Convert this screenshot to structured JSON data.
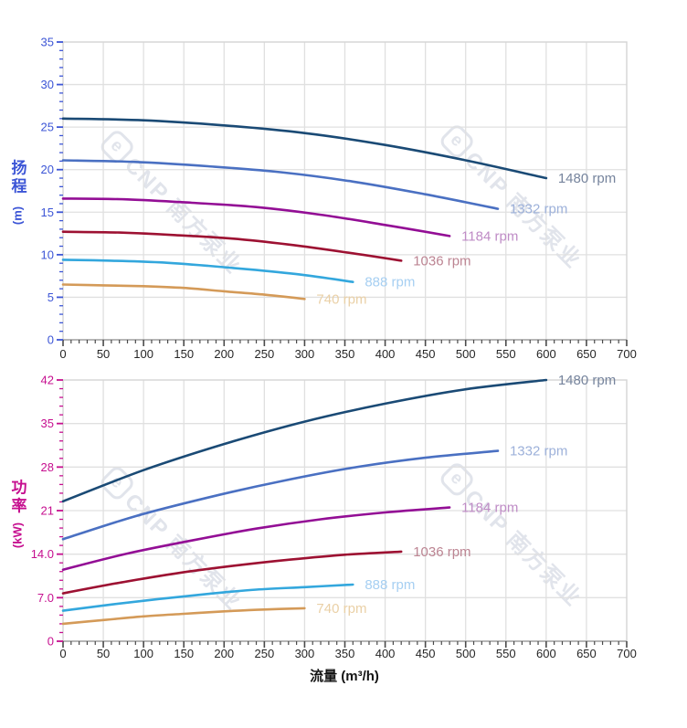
{
  "watermark": {
    "logo_text": "e",
    "text": "CNP 南方泵业"
  },
  "chart_data": [
    {
      "type": "line",
      "title": "",
      "xlabel": "",
      "ylabel": "扬程 (m)",
      "ylabel_cjk": "扬程",
      "ylabel_unit": "(m)",
      "xlim": [
        0,
        700
      ],
      "ylim": [
        0,
        35
      ],
      "x_major_tick": 50,
      "x_minor_tick": 10,
      "y_minor_tick": 1,
      "grid": true,
      "axis_color": "#3c55d6",
      "x_tick_labels": [
        "0",
        "50",
        "100",
        "150",
        "200",
        "250",
        "300",
        "350",
        "400",
        "450",
        "500",
        "550",
        "600",
        "650",
        "700"
      ],
      "y_tick_values": [
        0,
        5,
        10,
        15,
        20,
        25,
        30,
        35
      ],
      "y_tick_labels": [
        "0",
        "5",
        "10",
        "15",
        "20",
        "25",
        "30",
        "35"
      ],
      "legend_position": "end-of-curve",
      "series": [
        {
          "name": "1480 rpm",
          "color": "#1a4a75",
          "label_color": "#76849d",
          "x": [
            0,
            100,
            200,
            300,
            400,
            500,
            600
          ],
          "y": [
            26.0,
            25.8,
            25.2,
            24.3,
            22.9,
            21.1,
            19.0
          ]
        },
        {
          "name": "1332 rpm",
          "color": "#4a70c2",
          "label_color": "#9db1da",
          "x": [
            0,
            90,
            180,
            270,
            360,
            450,
            540
          ],
          "y": [
            21.1,
            20.9,
            20.4,
            19.7,
            18.6,
            17.1,
            15.4
          ]
        },
        {
          "name": "1184 rpm",
          "color": "#930e95",
          "label_color": "#bf8cc6",
          "x": [
            0,
            80,
            160,
            240,
            320,
            400,
            480
          ],
          "y": [
            16.6,
            16.5,
            16.1,
            15.6,
            14.7,
            13.5,
            12.2
          ]
        },
        {
          "name": "1036 rpm",
          "color": "#9d1132",
          "label_color": "#bc8492",
          "x": [
            0,
            70,
            140,
            210,
            280,
            350,
            420
          ],
          "y": [
            12.7,
            12.6,
            12.3,
            11.9,
            11.2,
            10.3,
            9.3
          ]
        },
        {
          "name": "888 rpm",
          "color": "#33a7dd",
          "label_color": "#a6cff2",
          "x": [
            0,
            60,
            120,
            180,
            240,
            300,
            360
          ],
          "y": [
            9.4,
            9.3,
            9.1,
            8.7,
            8.2,
            7.6,
            6.8
          ]
        },
        {
          "name": "740 rpm",
          "color": "#d49a58",
          "label_color": "#ead0a6",
          "x": [
            0,
            50,
            100,
            150,
            200,
            250,
            300
          ],
          "y": [
            6.5,
            6.4,
            6.3,
            6.1,
            5.7,
            5.3,
            4.8
          ]
        }
      ]
    },
    {
      "type": "line",
      "title": "",
      "xlabel": "流量 (m³/h)",
      "ylabel": "功率 (kW)",
      "ylabel_cjk": "功率",
      "ylabel_unit": "(kW)",
      "xlim": [
        0,
        700
      ],
      "ylim": [
        0,
        42
      ],
      "x_major_tick": 50,
      "x_minor_tick": 10,
      "y_minor_tick": 1.4,
      "grid": true,
      "axis_color": "#c60f8f",
      "x_tick_labels": [
        "0",
        "50",
        "100",
        "150",
        "200",
        "250",
        "300",
        "350",
        "400",
        "450",
        "500",
        "550",
        "600",
        "650",
        "700"
      ],
      "y_tick_values": [
        0,
        7,
        14,
        21,
        28,
        35,
        42
      ],
      "y_tick_labels": [
        "0",
        "7.0",
        "14.0",
        "21",
        "28",
        "35",
        "42"
      ],
      "legend_position": "end-of-curve",
      "series": [
        {
          "name": "1480 rpm",
          "color": "#1a4a75",
          "label_color": "#76849d",
          "x": [
            0,
            100,
            200,
            300,
            400,
            500,
            600
          ],
          "y": [
            22.5,
            27.5,
            31.7,
            35.3,
            38.2,
            40.5,
            42.0
          ]
        },
        {
          "name": "1332 rpm",
          "color": "#4a70c2",
          "label_color": "#9db1da",
          "x": [
            0,
            90,
            180,
            270,
            360,
            450,
            540
          ],
          "y": [
            16.4,
            20.1,
            23.1,
            25.7,
            27.9,
            29.5,
            30.6
          ]
        },
        {
          "name": "1184 rpm",
          "color": "#930e95",
          "label_color": "#bf8cc6",
          "x": [
            0,
            80,
            160,
            240,
            320,
            400,
            480
          ],
          "y": [
            11.5,
            14.1,
            16.2,
            18.1,
            19.6,
            20.7,
            21.5
          ]
        },
        {
          "name": "1036 rpm",
          "color": "#9d1132",
          "label_color": "#bc8492",
          "x": [
            0,
            70,
            140,
            210,
            280,
            350,
            420
          ],
          "y": [
            7.7,
            9.4,
            10.9,
            12.1,
            13.1,
            13.9,
            14.4
          ]
        },
        {
          "name": "888 rpm",
          "color": "#33a7dd",
          "label_color": "#a6cff2",
          "x": [
            0,
            60,
            120,
            180,
            240,
            300,
            360
          ],
          "y": [
            4.9,
            5.9,
            6.8,
            7.6,
            8.3,
            8.7,
            9.1
          ]
        },
        {
          "name": "740 rpm",
          "color": "#d49a58",
          "label_color": "#ead0a6",
          "x": [
            0,
            50,
            100,
            150,
            200,
            250,
            300
          ],
          "y": [
            2.8,
            3.4,
            4.0,
            4.4,
            4.8,
            5.1,
            5.3
          ]
        }
      ]
    }
  ]
}
